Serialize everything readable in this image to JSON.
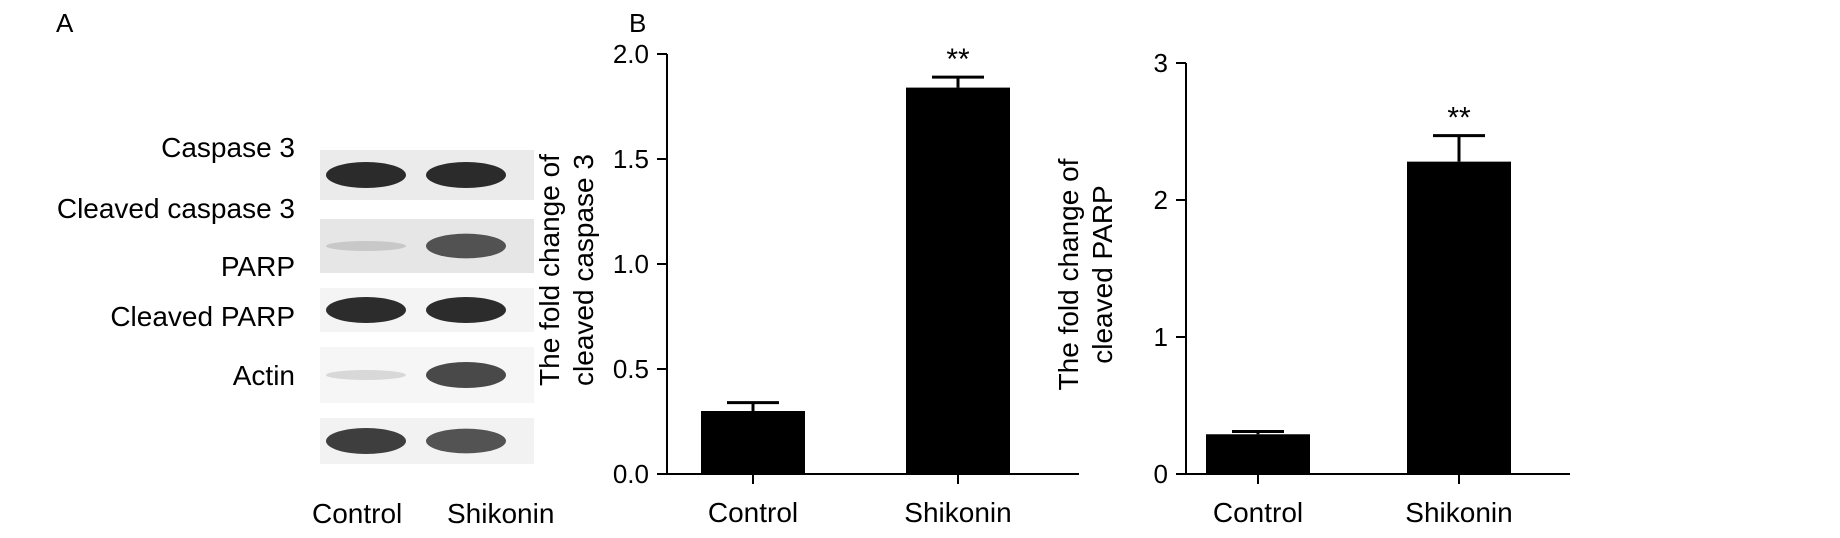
{
  "panel_a": {
    "letter": "A",
    "rows": [
      {
        "label": "Caspase 3",
        "control_intensity": 0.95,
        "shikonin_intensity": 0.95,
        "background": 0.22
      },
      {
        "label": "Cleaved caspase 3",
        "control_intensity": 0.15,
        "shikonin_intensity": 0.75,
        "background": 0.28
      },
      {
        "label": "PARP",
        "control_intensity": 0.95,
        "shikonin_intensity": 0.95,
        "background": 0.12
      },
      {
        "label": "Cleaved PARP",
        "control_intensity": 0.08,
        "shikonin_intensity": 0.8,
        "background": 0.1
      },
      {
        "label": "Actin",
        "control_intensity": 0.85,
        "shikonin_intensity": 0.75,
        "background": 0.15
      }
    ],
    "lanes": [
      "Control",
      "Shikonin"
    ]
  },
  "panel_b": {
    "letter": "B"
  },
  "chart_data": [
    {
      "type": "bar",
      "categories": [
        "Control",
        "Shikonin"
      ],
      "values": [
        0.3,
        1.84
      ],
      "errors": [
        0.04,
        0.05
      ],
      "significance": [
        "",
        "**"
      ],
      "ylabel_lines": [
        "The fold change of",
        "cleaved caspase 3"
      ],
      "ylim": [
        0,
        2.0
      ],
      "yticks": [
        "0.0",
        "0.5",
        "1.0",
        "1.5",
        "2.0"
      ],
      "ytick_values": [
        0,
        0.5,
        1.0,
        1.5,
        2.0
      ],
      "bar_color": "#000000"
    },
    {
      "type": "bar",
      "categories": [
        "Control",
        "Shikonin"
      ],
      "values": [
        0.29,
        2.28
      ],
      "errors": [
        0.02,
        0.19
      ],
      "significance": [
        "",
        "**"
      ],
      "ylabel_lines": [
        "The fold change of",
        "cleaved PARP"
      ],
      "ylim": [
        0,
        3
      ],
      "yticks": [
        "0",
        "1",
        "2",
        "3"
      ],
      "ytick_values": [
        0,
        1,
        2,
        3
      ],
      "bar_color": "#000000"
    }
  ]
}
